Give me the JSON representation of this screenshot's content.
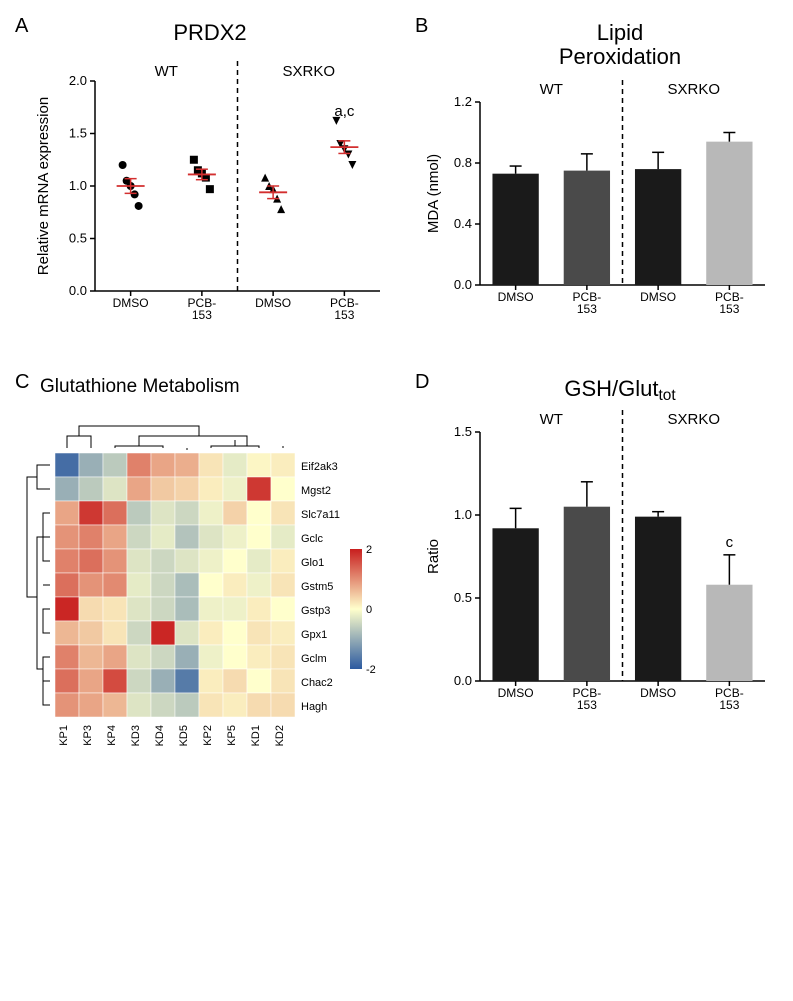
{
  "panelA": {
    "letter": "A",
    "title": "PRDX2",
    "ylabel": "Relative mRNA expression",
    "ylim": [
      0,
      2.0
    ],
    "yticks": [
      0,
      0.5,
      1.0,
      1.5,
      2.0
    ],
    "groups": [
      "WT",
      "SXRKO"
    ],
    "xcats": [
      "DMSO",
      "PCB-153",
      "DMSO",
      "PCB-153"
    ],
    "markers": [
      "circle",
      "square",
      "triangle-up",
      "triangle-down"
    ],
    "marker_color": "#000000",
    "error_color": "#d32f2f",
    "data": [
      [
        1.2,
        1.05,
        1.0,
        0.92,
        0.81
      ],
      [
        1.25,
        1.15,
        1.12,
        1.08,
        0.97
      ],
      [
        1.08,
        1.0,
        0.97,
        0.88,
        0.78
      ],
      [
        1.62,
        1.4,
        1.35,
        1.3,
        1.2
      ]
    ],
    "means": [
      1.0,
      1.11,
      0.94,
      1.37
    ],
    "sems": [
      0.07,
      0.05,
      0.06,
      0.06
    ],
    "annot": "a,c",
    "annot_group": 3
  },
  "panelB": {
    "letter": "B",
    "title": "Lipid\nPeroxidation",
    "ylabel": "MDA (nmol)",
    "ylim": [
      0,
      1.2
    ],
    "yticks": [
      0.0,
      0.4,
      0.8,
      1.2
    ],
    "groups": [
      "WT",
      "SXRKO"
    ],
    "xcats": [
      "DMSO",
      "PCB-153",
      "DMSO",
      "PCB-153"
    ],
    "bar_colors": [
      "#1a1a1a",
      "#4a4a4a",
      "#1a1a1a",
      "#b8b8b8"
    ],
    "values": [
      0.73,
      0.75,
      0.76,
      0.94
    ],
    "errors": [
      0.05,
      0.11,
      0.11,
      0.06
    ]
  },
  "panelC": {
    "letter": "C",
    "title": "Glutathione Metabolism",
    "row_labels": [
      "Eif2ak3",
      "Mgst2",
      "Slc7a11",
      "Gclc",
      "Glo1",
      "Gstm5",
      "Gstp3",
      "Gpx1",
      "Gclm",
      "Chac2",
      "Hagh"
    ],
    "col_labels": [
      "KP1",
      "KP3",
      "KP4",
      "KD3",
      "KD4",
      "KD5",
      "KP2",
      "KP5",
      "KD1",
      "KD2"
    ],
    "scale_ticks": [
      2,
      0,
      -2
    ],
    "colormap": {
      "low": "#2c5aa0",
      "mid": "#ffffcc",
      "high": "#c81e1e"
    },
    "matrix": [
      [
        -2.2,
        -1.2,
        -0.8,
        1.4,
        1.0,
        0.9,
        0.3,
        -0.3,
        0.1,
        0.2
      ],
      [
        -1.2,
        -0.8,
        -0.4,
        1.0,
        0.6,
        0.5,
        0.2,
        -0.2,
        2.2,
        0.0
      ],
      [
        1.0,
        2.2,
        1.6,
        -0.8,
        -0.4,
        -0.6,
        -0.2,
        0.5,
        0.0,
        0.3
      ],
      [
        1.2,
        1.4,
        1.0,
        -0.6,
        -0.3,
        -0.9,
        -0.4,
        -0.2,
        0.0,
        -0.3
      ],
      [
        1.4,
        1.6,
        1.2,
        -0.4,
        -0.6,
        -0.4,
        -0.2,
        0.0,
        -0.3,
        0.2
      ],
      [
        1.6,
        1.2,
        1.3,
        -0.3,
        -0.6,
        -1.0,
        0.0,
        0.2,
        -0.2,
        0.3
      ],
      [
        2.4,
        0.4,
        0.3,
        -0.4,
        -0.6,
        -1.0,
        -0.2,
        -0.2,
        0.2,
        0.0
      ],
      [
        0.8,
        0.6,
        0.3,
        -0.6,
        2.4,
        -0.4,
        0.2,
        0.0,
        0.3,
        0.2
      ],
      [
        1.4,
        0.8,
        1.0,
        -0.4,
        -0.6,
        -1.2,
        -0.2,
        0.0,
        0.2,
        0.3
      ],
      [
        1.6,
        1.0,
        2.0,
        -0.6,
        -1.2,
        -2.0,
        0.2,
        0.4,
        0.0,
        0.3
      ],
      [
        1.2,
        1.0,
        0.8,
        -0.4,
        -0.6,
        -0.8,
        0.3,
        0.2,
        0.4,
        0.4
      ]
    ]
  },
  "panelD": {
    "letter": "D",
    "title_html": "GSH/Glut<tspan class='sub' dy='4'>tot</tspan>",
    "ylabel": "Ratio",
    "ylim": [
      0,
      1.5
    ],
    "yticks": [
      0,
      0.5,
      1.0,
      1.5
    ],
    "groups": [
      "WT",
      "SXRKO"
    ],
    "xcats": [
      "DMSO",
      "PCB-153",
      "DMSO",
      "PCB-153"
    ],
    "bar_colors": [
      "#1a1a1a",
      "#4a4a4a",
      "#1a1a1a",
      "#b8b8b8"
    ],
    "values": [
      0.92,
      1.05,
      0.99,
      0.58
    ],
    "errors": [
      0.12,
      0.15,
      0.03,
      0.18
    ],
    "annot": "c",
    "annot_group": 3
  }
}
